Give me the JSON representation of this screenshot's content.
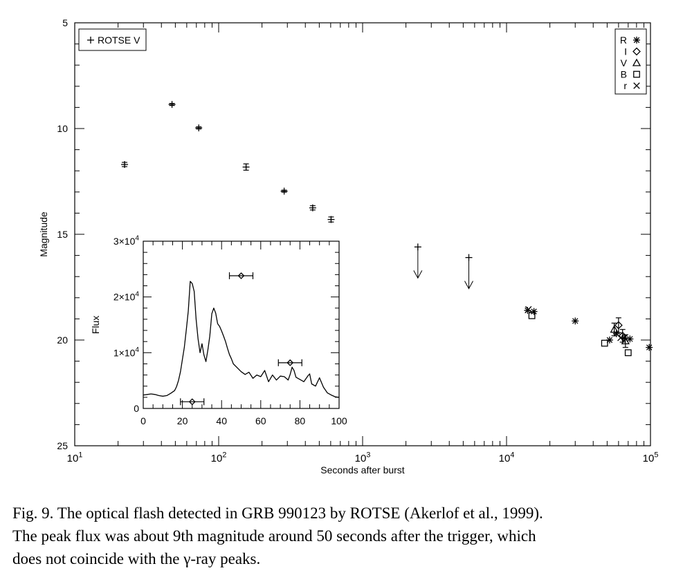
{
  "chart_data": [
    {
      "type": "scatter",
      "xscale": "log",
      "xlim": [
        10,
        100000
      ],
      "ylim": [
        25,
        5
      ],
      "y_inverted": true,
      "xlabel": "Seconds after burst",
      "ylabel": "Magnitude",
      "x_tick_labels": [
        {
          "base": "10",
          "exp": "1"
        },
        {
          "base": "10",
          "exp": "2"
        },
        {
          "base": "10",
          "exp": "3"
        },
        {
          "base": "10",
          "exp": "4"
        },
        {
          "base": "10",
          "exp": "5"
        }
      ],
      "y_tick_labels": [
        "5",
        "10",
        "15",
        "20",
        "25"
      ],
      "legend_left": {
        "placement": "top-left",
        "symbol": "+",
        "label": "ROTSE V"
      },
      "legend_right": {
        "placement": "top-right",
        "entries": [
          {
            "label": "R",
            "symbol": "asterisk"
          },
          {
            "label": "I",
            "symbol": "diamond"
          },
          {
            "label": "V",
            "symbol": "triangle"
          },
          {
            "label": "B",
            "symbol": "square"
          },
          {
            "label": "r",
            "symbol": "x"
          }
        ]
      },
      "series": [
        {
          "symbol": "plus",
          "points": [
            {
              "x": 22.2,
              "y": 11.7,
              "err": 0.1
            },
            {
              "x": 47.4,
              "y": 8.86,
              "err": 0.05
            },
            {
              "x": 72.7,
              "y": 9.97,
              "err": 0.05
            },
            {
              "x": 155,
              "y": 11.82,
              "err": 0.15
            },
            {
              "x": 285,
              "y": 12.96,
              "err": 0.05
            },
            {
              "x": 450,
              "y": 13.75,
              "err": 0.1
            },
            {
              "x": 604,
              "y": 14.3,
              "err": 0.12
            }
          ]
        },
        {
          "symbol": "plus-upper-limit",
          "points": [
            {
              "x": 2420,
              "y": 15.6
            },
            {
              "x": 5470,
              "y": 16.1
            }
          ]
        },
        {
          "symbol": "asterisk",
          "points": [
            {
              "x": 14000,
              "y": 18.6
            },
            {
              "x": 15500,
              "y": 18.65
            },
            {
              "x": 30000,
              "y": 19.1
            },
            {
              "x": 52000,
              "y": 20.0
            },
            {
              "x": 58000,
              "y": 19.7
            },
            {
              "x": 66000,
              "y": 19.9
            },
            {
              "x": 72000,
              "y": 19.95
            },
            {
              "x": 98000,
              "y": 20.35
            }
          ]
        },
        {
          "symbol": "diamond",
          "points": [
            {
              "x": 60000,
              "y": 19.3,
              "err": 0.35
            },
            {
              "x": 64000,
              "y": 19.8,
              "err": 0.3
            }
          ]
        },
        {
          "symbol": "triangle",
          "points": [
            {
              "x": 56000,
              "y": 19.5,
              "err": 0.3
            },
            {
              "x": 67000,
              "y": 20.05,
              "err": 0.3
            }
          ]
        },
        {
          "symbol": "square",
          "points": [
            {
              "x": 15000,
              "y": 18.85
            },
            {
              "x": 48000,
              "y": 20.15
            },
            {
              "x": 70000,
              "y": 20.6
            }
          ]
        },
        {
          "symbol": "x",
          "points": [
            {
              "x": 14200,
              "y": 18.55
            },
            {
              "x": 62000,
              "y": 19.9
            }
          ]
        }
      ]
    },
    {
      "type": "line",
      "xlim": [
        0,
        100
      ],
      "ylim": [
        0,
        30000
      ],
      "xlabel": "",
      "ylabel": "Flux",
      "x_tick_labels": [
        "0",
        "20",
        "40",
        "60",
        "80",
        "100"
      ],
      "y_tick_labels": [
        {
          "base": "0",
          "exp": ""
        },
        {
          "base": "1×10",
          "exp": "4"
        },
        {
          "base": "2×10",
          "exp": "4"
        },
        {
          "base": "3×10",
          "exp": "4"
        }
      ],
      "curve": {
        "x": [
          0,
          2,
          4,
          6,
          8,
          10,
          12,
          14,
          16,
          17,
          18,
          19,
          20,
          21,
          22,
          23,
          24,
          25,
          26,
          27,
          28,
          29,
          30,
          31,
          32,
          33,
          34,
          35,
          36,
          37,
          38,
          39,
          40,
          41,
          42,
          43,
          44,
          45,
          46,
          48,
          50,
          52,
          54,
          56,
          58,
          60,
          62,
          64,
          66,
          68,
          70,
          72,
          74,
          75,
          76,
          77,
          78,
          80,
          82,
          84,
          85,
          86,
          88,
          90,
          92,
          94,
          96,
          98,
          100
        ],
        "y": [
          2400,
          2500,
          2600,
          2500,
          2300,
          2200,
          2300,
          2700,
          3200,
          3900,
          5000,
          6600,
          8800,
          11000,
          14200,
          17500,
          22800,
          22400,
          21000,
          16000,
          12500,
          10000,
          11600,
          9600,
          8400,
          10500,
          13000,
          17000,
          18000,
          17100,
          15200,
          14700,
          13900,
          13000,
          12000,
          10800,
          9700,
          8900,
          8000,
          7300,
          6600,
          6100,
          6500,
          5400,
          6000,
          5700,
          6800,
          4800,
          6000,
          5100,
          5800,
          5700,
          5100,
          6100,
          7400,
          6800,
          5600,
          5200,
          4800,
          5800,
          6200,
          4400,
          4000,
          5500,
          3800,
          2800,
          2400,
          2100,
          2000
        ]
      },
      "points": [
        {
          "symbol": "diamond",
          "x": 25,
          "y": 1200,
          "xerr": 2
        },
        {
          "symbol": "diamond",
          "x": 50,
          "y": 23800,
          "xerr": 2
        },
        {
          "symbol": "diamond",
          "x": 75,
          "y": 8200,
          "xerr": 2
        }
      ]
    }
  ],
  "caption": {
    "lines": [
      "Fig. 9. The optical flash detected in GRB 990123 by ROTSE (Akerlof et al., 1999).",
      "The peak flux was about 9th magnitude around 50 seconds after the trigger, which",
      "does not coincide with the γ-ray peaks."
    ]
  }
}
